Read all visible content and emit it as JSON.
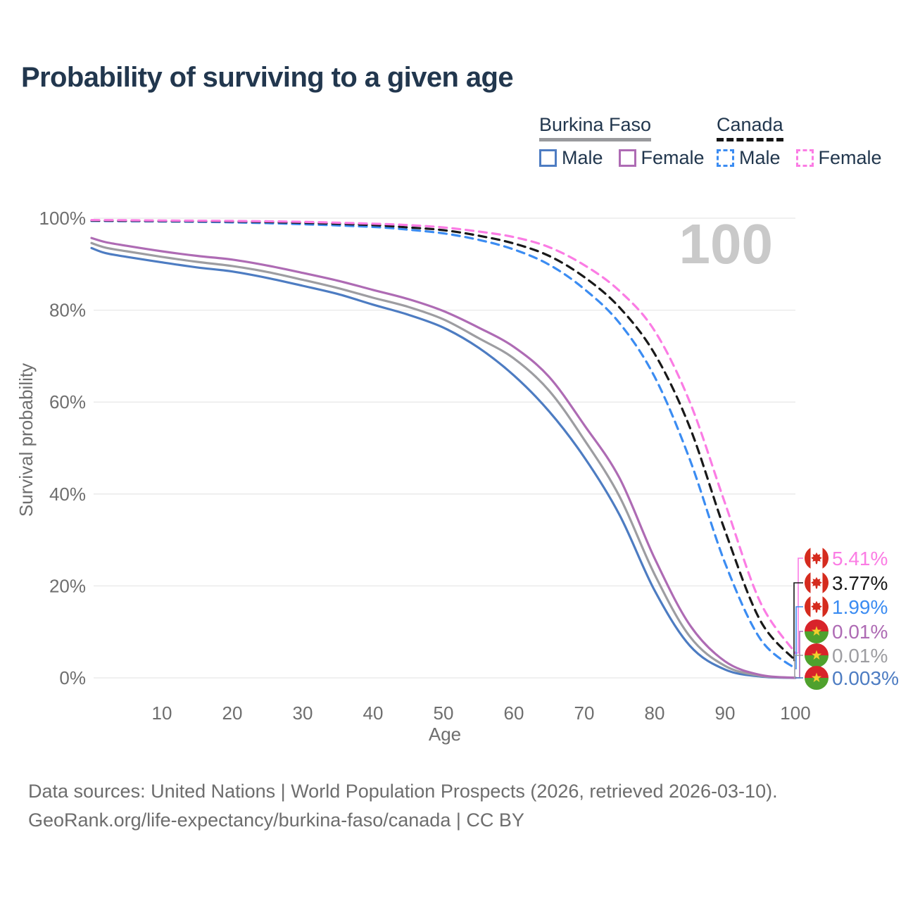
{
  "header": {
    "title": "Probability of surviving to a given age"
  },
  "watermark": "100",
  "legend": {
    "groups": [
      {
        "name": "Burkina Faso",
        "line_style": "solid",
        "items": [
          {
            "label": "Male",
            "color": "#4d7cc2",
            "dashed": false
          },
          {
            "label": "Female",
            "color": "#ae6bb4",
            "dashed": false
          }
        ]
      },
      {
        "name": "Canada",
        "line_style": "dashed",
        "items": [
          {
            "label": "Male",
            "color": "#3b8cf2",
            "dashed": true
          },
          {
            "label": "Female",
            "color": "#fb7ce4",
            "dashed": true
          }
        ]
      }
    ]
  },
  "chart_data": {
    "type": "line",
    "title": "Probability of surviving to a given age",
    "xlabel": "Age",
    "ylabel": "Survival probability",
    "xlim": [
      0,
      100
    ],
    "ylim": [
      0,
      100
    ],
    "grid": "horizontal",
    "x_ticks": [
      10,
      20,
      30,
      40,
      50,
      60,
      70,
      80,
      90,
      100
    ],
    "y_ticks": [
      {
        "v": 0,
        "label": "0%"
      },
      {
        "v": 20,
        "label": "20%"
      },
      {
        "v": 40,
        "label": "40%"
      },
      {
        "v": 60,
        "label": "60%"
      },
      {
        "v": 80,
        "label": "80%"
      },
      {
        "v": 100,
        "label": "100%"
      }
    ],
    "series": [
      {
        "id": "bf-male",
        "name": "Burkina Faso — Male",
        "color": "#4d7cc2",
        "dash": false,
        "flag": "burkina-faso",
        "end_label": "0.003%",
        "points": [
          [
            0,
            93.5
          ],
          [
            2,
            92.4
          ],
          [
            5,
            91.6
          ],
          [
            10,
            90.4
          ],
          [
            15,
            89.3
          ],
          [
            20,
            88.4
          ],
          [
            25,
            87.0
          ],
          [
            30,
            85.3
          ],
          [
            35,
            83.5
          ],
          [
            40,
            81.2
          ],
          [
            45,
            79.0
          ],
          [
            50,
            76.2
          ],
          [
            55,
            71.8
          ],
          [
            60,
            65.8
          ],
          [
            65,
            58.0
          ],
          [
            70,
            48.0
          ],
          [
            75,
            35.5
          ],
          [
            80,
            19.0
          ],
          [
            85,
            7.0
          ],
          [
            90,
            1.8
          ],
          [
            95,
            0.3
          ],
          [
            100,
            0.003
          ]
        ]
      },
      {
        "id": "bf-all",
        "name": "Burkina Faso — Both sexes",
        "color": "#9d9da1",
        "dash": false,
        "flag": "burkina-faso",
        "end_label": "0.01%",
        "points": [
          [
            0,
            94.6
          ],
          [
            2,
            93.6
          ],
          [
            5,
            92.8
          ],
          [
            10,
            91.6
          ],
          [
            15,
            90.5
          ],
          [
            20,
            89.6
          ],
          [
            25,
            88.3
          ],
          [
            30,
            86.6
          ],
          [
            35,
            84.8
          ],
          [
            40,
            82.7
          ],
          [
            45,
            80.7
          ],
          [
            50,
            78.0
          ],
          [
            55,
            73.9
          ],
          [
            60,
            69.5
          ],
          [
            65,
            62.5
          ],
          [
            70,
            51.8
          ],
          [
            75,
            39.5
          ],
          [
            80,
            22.5
          ],
          [
            85,
            9.0
          ],
          [
            90,
            2.6
          ],
          [
            95,
            0.45
          ],
          [
            100,
            0.01
          ]
        ]
      },
      {
        "id": "bf-female",
        "name": "Burkina Faso — Female",
        "color": "#ae6bb4",
        "dash": false,
        "flag": "burkina-faso",
        "end_label": "0.01%",
        "points": [
          [
            0,
            95.7
          ],
          [
            2,
            94.8
          ],
          [
            5,
            94.0
          ],
          [
            10,
            92.8
          ],
          [
            15,
            91.8
          ],
          [
            20,
            91.0
          ],
          [
            25,
            89.7
          ],
          [
            30,
            88.1
          ],
          [
            35,
            86.4
          ],
          [
            40,
            84.4
          ],
          [
            45,
            82.4
          ],
          [
            50,
            79.8
          ],
          [
            55,
            76.2
          ],
          [
            60,
            72.0
          ],
          [
            65,
            65.5
          ],
          [
            70,
            55.0
          ],
          [
            75,
            43.5
          ],
          [
            80,
            26.0
          ],
          [
            85,
            11.5
          ],
          [
            90,
            3.6
          ],
          [
            95,
            0.65
          ],
          [
            100,
            0.01
          ]
        ]
      },
      {
        "id": "ca-male",
        "name": "Canada — Male",
        "color": "#3b8cf2",
        "dash": true,
        "flag": "canada",
        "end_label": "1.99%",
        "points": [
          [
            0,
            99.4
          ],
          [
            10,
            99.3
          ],
          [
            20,
            99.1
          ],
          [
            30,
            98.7
          ],
          [
            40,
            98.1
          ],
          [
            45,
            97.5
          ],
          [
            50,
            96.7
          ],
          [
            55,
            95.3
          ],
          [
            60,
            93.2
          ],
          [
            65,
            89.9
          ],
          [
            70,
            84.6
          ],
          [
            75,
            77.2
          ],
          [
            80,
            65.5
          ],
          [
            85,
            47.5
          ],
          [
            90,
            25.0
          ],
          [
            95,
            8.5
          ],
          [
            100,
            1.99
          ]
        ]
      },
      {
        "id": "ca-all",
        "name": "Canada — Both sexes",
        "color": "#191919",
        "dash": true,
        "flag": "canada",
        "end_label": "3.77%",
        "points": [
          [
            0,
            99.5
          ],
          [
            10,
            99.4
          ],
          [
            20,
            99.3
          ],
          [
            30,
            99.0
          ],
          [
            40,
            98.5
          ],
          [
            45,
            98.0
          ],
          [
            50,
            97.4
          ],
          [
            55,
            96.2
          ],
          [
            60,
            94.5
          ],
          [
            65,
            91.8
          ],
          [
            70,
            87.2
          ],
          [
            75,
            80.6
          ],
          [
            80,
            70.5
          ],
          [
            85,
            54.5
          ],
          [
            90,
            32.0
          ],
          [
            95,
            12.5
          ],
          [
            100,
            3.77
          ]
        ]
      },
      {
        "id": "ca-female",
        "name": "Canada — Female",
        "color": "#fb7ce4",
        "dash": true,
        "flag": "canada",
        "end_label": "5.41%",
        "points": [
          [
            0,
            99.6
          ],
          [
            10,
            99.5
          ],
          [
            20,
            99.4
          ],
          [
            30,
            99.2
          ],
          [
            40,
            98.8
          ],
          [
            45,
            98.5
          ],
          [
            50,
            98.0
          ],
          [
            55,
            97.1
          ],
          [
            60,
            95.9
          ],
          [
            65,
            93.7
          ],
          [
            70,
            89.8
          ],
          [
            75,
            84.2
          ],
          [
            80,
            75.5
          ],
          [
            85,
            60.0
          ],
          [
            90,
            38.0
          ],
          [
            95,
            16.5
          ],
          [
            100,
            5.41
          ]
        ]
      }
    ]
  },
  "footer": {
    "line1": "Data sources: United Nations | World Population Prospects (2026, retrieved 2026-03-10).",
    "line2": "GeoRank.org/life-expectancy/burkina-faso/canada | CC BY"
  }
}
